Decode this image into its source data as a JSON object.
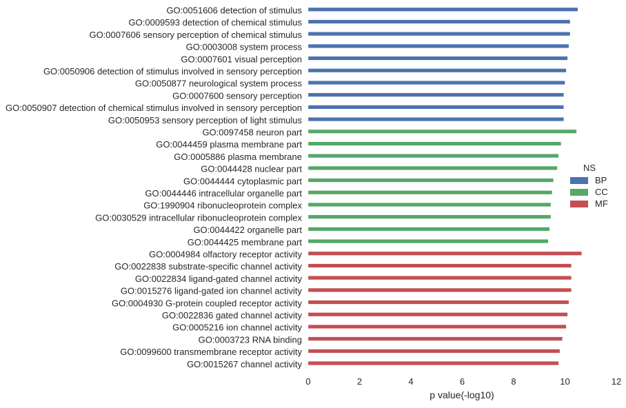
{
  "chart_data": {
    "type": "bar",
    "orientation": "horizontal",
    "title": "",
    "xlabel": "p value(-log10)",
    "ylabel": "",
    "xlim": [
      0,
      12
    ],
    "xticks": [
      0,
      2,
      4,
      6,
      8,
      10,
      12
    ],
    "grid": false,
    "legend": {
      "title": "NS",
      "placement": "right",
      "entries": [
        {
          "name": "BP",
          "color": "#4c72b0"
        },
        {
          "name": "CC",
          "color": "#55a868"
        },
        {
          "name": "MF",
          "color": "#c44e52"
        }
      ]
    },
    "series": [
      {
        "name": "BP",
        "color": "#4c72b0",
        "categories": [
          "GO:0051606 detection of stimulus",
          "GO:0009593 detection of chemical stimulus",
          "GO:0007606 sensory perception of chemical stimulus",
          "GO:0003008 system process",
          "GO:0007601 visual perception",
          "GO:0050906 detection of stimulus involved in sensory perception",
          "GO:0050877 neurological system process",
          "GO:0007600 sensory perception",
          "GO:0050907 detection of chemical stimulus involved in sensory perception",
          "GO:0050953 sensory perception of light stimulus"
        ],
        "values": [
          10.5,
          10.2,
          10.2,
          10.15,
          10.1,
          10.05,
          10.0,
          9.95,
          9.95,
          9.95
        ]
      },
      {
        "name": "CC",
        "color": "#55a868",
        "categories": [
          "GO:0097458 neuron part",
          "GO:0044459 plasma membrane part",
          "GO:0005886 plasma membrane",
          "GO:0044428 nuclear part",
          "GO:0044444 cytoplasmic part",
          "GO:0044446 intracellular organelle part",
          "GO:1990904 ribonucleoprotein complex",
          "GO:0030529 intracellular ribonucleoprotein complex",
          "GO:0044422 organelle part",
          "GO:0044425 membrane part"
        ],
        "values": [
          10.45,
          9.85,
          9.75,
          9.7,
          9.55,
          9.5,
          9.45,
          9.45,
          9.4,
          9.35
        ]
      },
      {
        "name": "MF",
        "color": "#c44e52",
        "categories": [
          "GO:0004984 olfactory receptor activity",
          "GO:0022838 substrate-specific channel activity",
          "GO:0022834 ligand-gated channel activity",
          "GO:0015276 ligand-gated ion channel activity",
          "GO:0004930 G-protein coupled receptor activity",
          "GO:0022836 gated channel activity",
          "GO:0005216 ion channel activity",
          "GO:0003723 RNA binding",
          "GO:0099600 transmembrane receptor activity",
          "GO:0015267 channel activity"
        ],
        "values": [
          10.65,
          10.25,
          10.25,
          10.25,
          10.15,
          10.1,
          10.05,
          9.9,
          9.8,
          9.75
        ]
      }
    ]
  }
}
